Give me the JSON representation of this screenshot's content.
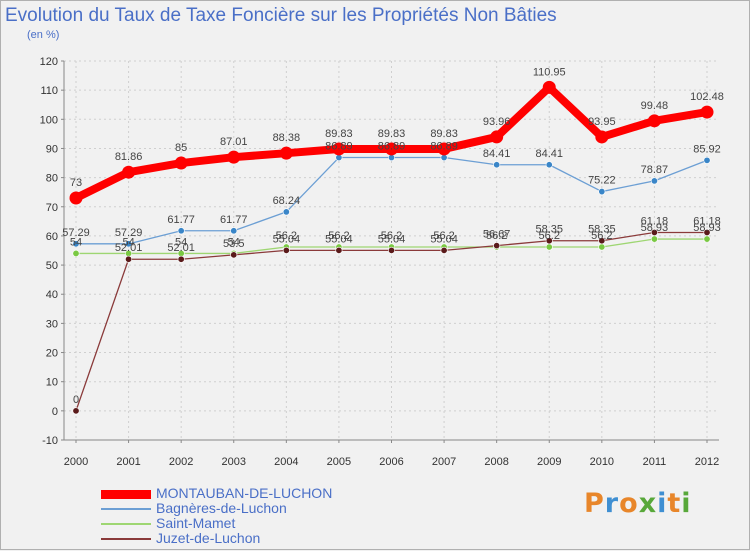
{
  "title": "Evolution du Taux de Taxe Foncière sur les Propriétés Non Bâties",
  "y_unit": "(en %)",
  "brand": {
    "text": "Proxiti",
    "letters": [
      "P",
      "r",
      "o",
      "x",
      "i",
      "t",
      "i"
    ],
    "colors": [
      "#e8862a",
      "#3f8fd2",
      "#e8862a",
      "#58a83a",
      "#3f8fd2",
      "#e8862a",
      "#58a83a"
    ]
  },
  "chart_data": {
    "type": "line",
    "title": "Evolution du Taux de Taxe Foncière sur les Propriétés Non Bâties",
    "ylabel": "(en %)",
    "xlabel": "",
    "ylim": [
      -10,
      120
    ],
    "yticks": [
      -10,
      0,
      10,
      20,
      30,
      40,
      50,
      60,
      70,
      80,
      90,
      100,
      110,
      120
    ],
    "grid": true,
    "categories": [
      "2000",
      "2001",
      "2002",
      "2003",
      "2004",
      "2005",
      "2006",
      "2007",
      "2008",
      "2009",
      "2010",
      "2011",
      "2012"
    ],
    "series": [
      {
        "name": "MONTAUBAN-DE-LUCHON",
        "color": "#ff0000",
        "marker": "#ff0000",
        "thick": true,
        "values": [
          73,
          81.86,
          85,
          87.01,
          88.38,
          89.83,
          89.83,
          89.83,
          93.96,
          110.95,
          93.95,
          99.48,
          102.48
        ],
        "labels": [
          "73",
          "81.86",
          "85",
          "87.01",
          "88.38",
          "89.83",
          "89.83",
          "89.83",
          "93.96",
          "110.95",
          "93.95",
          "99.48",
          "102.48"
        ]
      },
      {
        "name": "Bagnères-de-Luchon",
        "color": "#6c9fd4",
        "marker": "#3a86c8",
        "thick": false,
        "values": [
          57.29,
          57.29,
          61.77,
          61.77,
          68.24,
          86.89,
          86.89,
          86.89,
          84.41,
          84.41,
          75.22,
          78.87,
          85.92
        ],
        "labels": [
          "57.29",
          "57.29",
          "61.77",
          "61.77",
          "68.24",
          "86.89",
          "86.89",
          "86.89",
          "84.41",
          "84.41",
          "75.22",
          "78.87",
          "85.92"
        ]
      },
      {
        "name": "Saint-Mamet",
        "color": "#9ed672",
        "marker": "#7ac943",
        "thick": false,
        "values": [
          54,
          54,
          54,
          54,
          56.2,
          56.2,
          56.2,
          56.2,
          56.2,
          56.2,
          56.2,
          58.93,
          58.93
        ],
        "labels": [
          "54",
          "54",
          "54",
          "54",
          "56.2",
          "56.2",
          "56.2",
          "56.2",
          "56.2",
          "56.2",
          "56.2",
          "58.93",
          "58.93"
        ]
      },
      {
        "name": "Juzet-de-Luchon",
        "color": "#8a3a3a",
        "marker": "#5a1a1a",
        "thick": false,
        "values": [
          0,
          52.01,
          52.01,
          53.5,
          55.04,
          55.04,
          55.04,
          55.04,
          56.67,
          58.35,
          58.35,
          61.18,
          61.18
        ],
        "labels": [
          "0",
          "52.01",
          "52.01",
          "53.5",
          "55.04",
          "55.04",
          "55.04",
          "55.04",
          "56.67",
          "58.35",
          "58.35",
          "61.18",
          "61.18"
        ]
      }
    ],
    "legend_position": "bottom-left"
  }
}
